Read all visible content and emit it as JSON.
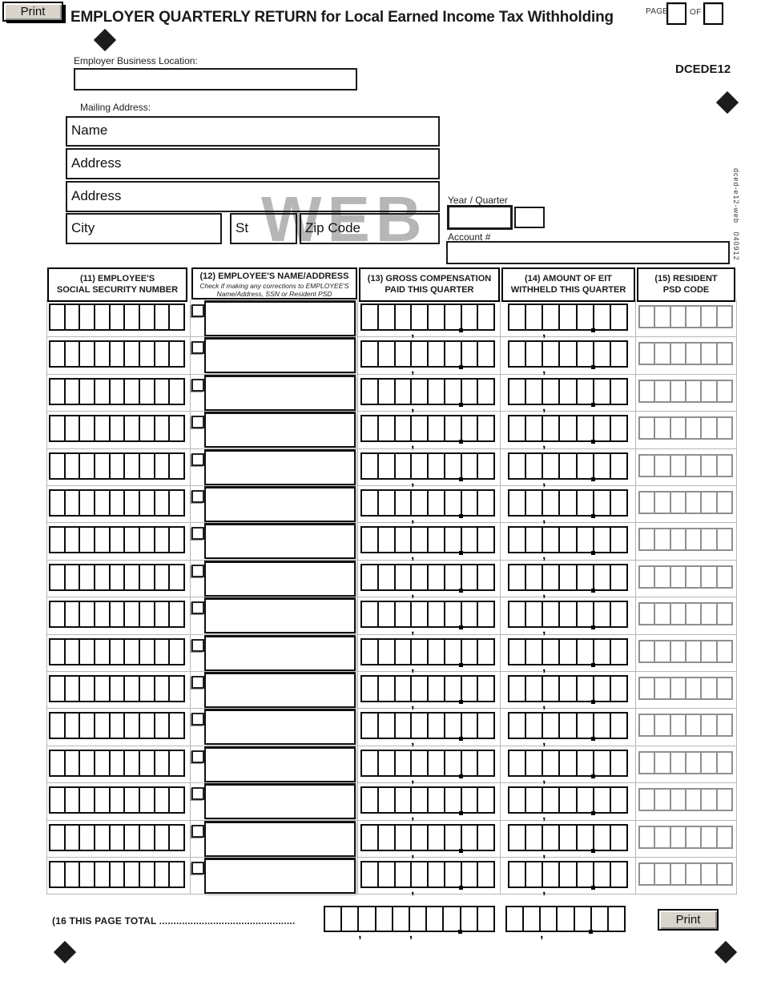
{
  "header": {
    "print_button_label": "Print",
    "title": "EMPLOYER QUARTERLY RETURN for Local Earned Income Tax Withholding",
    "page_label": "PAGE",
    "of_label": "OF",
    "page_value": "",
    "total_pages_value": "",
    "form_code": "DCEDE12"
  },
  "employer": {
    "business_location_label": "Employer Business Location:",
    "business_location_value": "",
    "mailing_address_label": "Mailing Address:",
    "name_label": "Name",
    "address1_label": "Address",
    "address2_label": "Address",
    "city_label": "City",
    "state_label": "St",
    "zip_label": "Zip Code",
    "year_quarter_label": "Year / Quarter",
    "year_value": "",
    "quarter_value": "",
    "account_label": "Account #",
    "account_value": ""
  },
  "watermark": "WEB",
  "side_text": "dced-e12-web   040912",
  "table": {
    "columns": [
      {
        "title_line1": "(11) EMPLOYEE'S",
        "title_line2": "SOCIAL SECURITY NUMBER"
      },
      {
        "title_line1": "(12) EMPLOYEE'S NAME/ADDRESS",
        "note_line1": "Check if making any corrections to EMPLOYEE'S",
        "note_line2": "Name/Address, SSN or Resident PSD"
      },
      {
        "title_line1": "(13) GROSS COMPENSATION",
        "title_line2": "PAID THIS QUARTER"
      },
      {
        "title_line1": "(14) AMOUNT OF EIT",
        "title_line2": "WITHHELD THIS QUARTER"
      },
      {
        "title_line1": "(15) RESIDENT",
        "title_line2": "PSD CODE"
      }
    ],
    "row_count": 16,
    "combs": {
      "ssn": {
        "cells": 9,
        "comma_after": [],
        "period_after": []
      },
      "gross": {
        "cells": 8,
        "comma_after": [
          3
        ],
        "period_after": [
          6
        ]
      },
      "eit": {
        "cells": 7,
        "comma_after": [
          2
        ],
        "period_after": [
          5
        ]
      },
      "psd": {
        "cells": 6,
        "comma_after": [],
        "period_after": []
      },
      "total_gross": {
        "cells": 10,
        "comma_after": [
          2,
          5
        ],
        "period_after": [
          8
        ]
      },
      "total_eit": {
        "cells": 7,
        "comma_after": [
          2
        ],
        "period_after": [
          5
        ]
      }
    }
  },
  "totals": {
    "label": "(16 THIS PAGE TOTAL ................................................",
    "print_button_label": "Print"
  },
  "colors": {
    "button_face": "#d9d5cc",
    "border_black": "#000000",
    "grid_gray": "#b7b7b7",
    "watermark_gray": "#b6b6b6"
  }
}
